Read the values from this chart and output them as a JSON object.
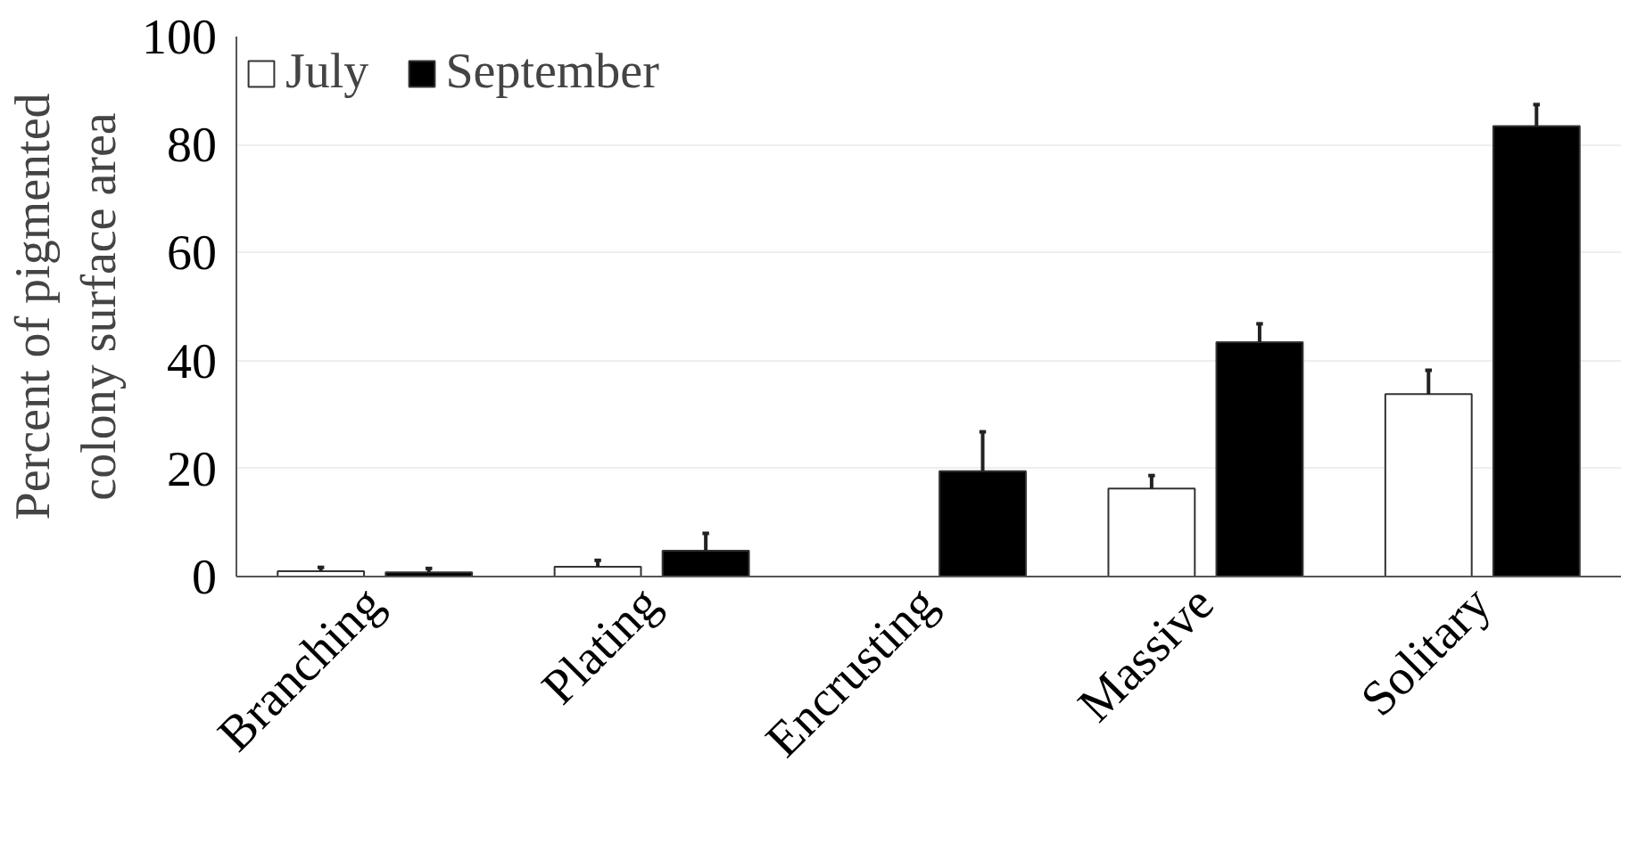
{
  "chart_data": {
    "type": "bar",
    "ylabel": "Percent of pigmented\ncolony surface area",
    "categories": [
      "Branching",
      "Plating",
      "Encrusting",
      "Massive",
      "Solitary"
    ],
    "series": [
      {
        "name": "July",
        "color": "#ffffff",
        "values": [
          1.0,
          1.8,
          null,
          16.3,
          33.8
        ],
        "errors": [
          [
            1.0,
            1.7
          ],
          [
            1.8,
            3.0
          ],
          null,
          [
            16.3,
            18.7
          ],
          [
            33.8,
            38.2
          ]
        ]
      },
      {
        "name": "September",
        "color": "#000000",
        "values": [
          0.8,
          4.8,
          19.5,
          43.4,
          83.4
        ],
        "errors": [
          [
            0.8,
            1.5
          ],
          [
            4.8,
            8.0
          ],
          [
            19.5,
            26.8
          ],
          [
            43.4,
            46.8
          ],
          [
            83.4,
            87.4
          ]
        ]
      }
    ],
    "ylim": [
      0,
      100
    ],
    "yticks": [
      0,
      20,
      40,
      60,
      80,
      100
    ],
    "grid": "y",
    "legend": "top left"
  }
}
